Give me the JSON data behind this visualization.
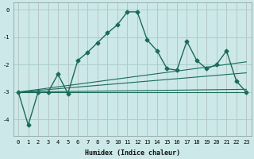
{
  "title": "",
  "xlabel": "Humidex (Indice chaleur)",
  "bg_color": "#cce8e8",
  "grid_color": "#aacccc",
  "line_color": "#1a6b5a",
  "xlim": [
    -0.5,
    23.5
  ],
  "ylim": [
    -4.6,
    0.25
  ],
  "yticks": [
    0,
    -1,
    -2,
    -3,
    -4
  ],
  "xticks": [
    0,
    1,
    2,
    3,
    4,
    5,
    6,
    7,
    8,
    9,
    10,
    11,
    12,
    13,
    14,
    15,
    16,
    17,
    18,
    19,
    20,
    21,
    22,
    23
  ],
  "series_main": {
    "x": [
      0,
      1,
      2,
      3,
      4,
      5,
      6,
      7,
      8,
      9,
      10,
      11,
      12,
      13,
      14,
      15,
      16,
      17,
      18,
      19,
      20,
      21,
      22,
      23
    ],
    "y": [
      -3.0,
      -4.2,
      -3.0,
      -3.0,
      -2.35,
      -3.05,
      -1.85,
      -1.55,
      -1.2,
      -0.85,
      -0.55,
      -0.08,
      -0.08,
      -1.1,
      -1.5,
      -2.15,
      -2.2,
      -1.15,
      -1.85,
      -2.15,
      -2.0,
      -1.5,
      -2.6,
      -3.0
    ]
  },
  "series_reg": [
    {
      "x": [
        0,
        23
      ],
      "y": [
        -3.0,
        -1.9
      ]
    },
    {
      "x": [
        0,
        23
      ],
      "y": [
        -3.0,
        -2.3
      ]
    },
    {
      "x": [
        0,
        23
      ],
      "y": [
        -3.0,
        -2.9
      ]
    },
    {
      "x": [
        0,
        23
      ],
      "y": [
        -3.0,
        -3.0
      ]
    }
  ]
}
